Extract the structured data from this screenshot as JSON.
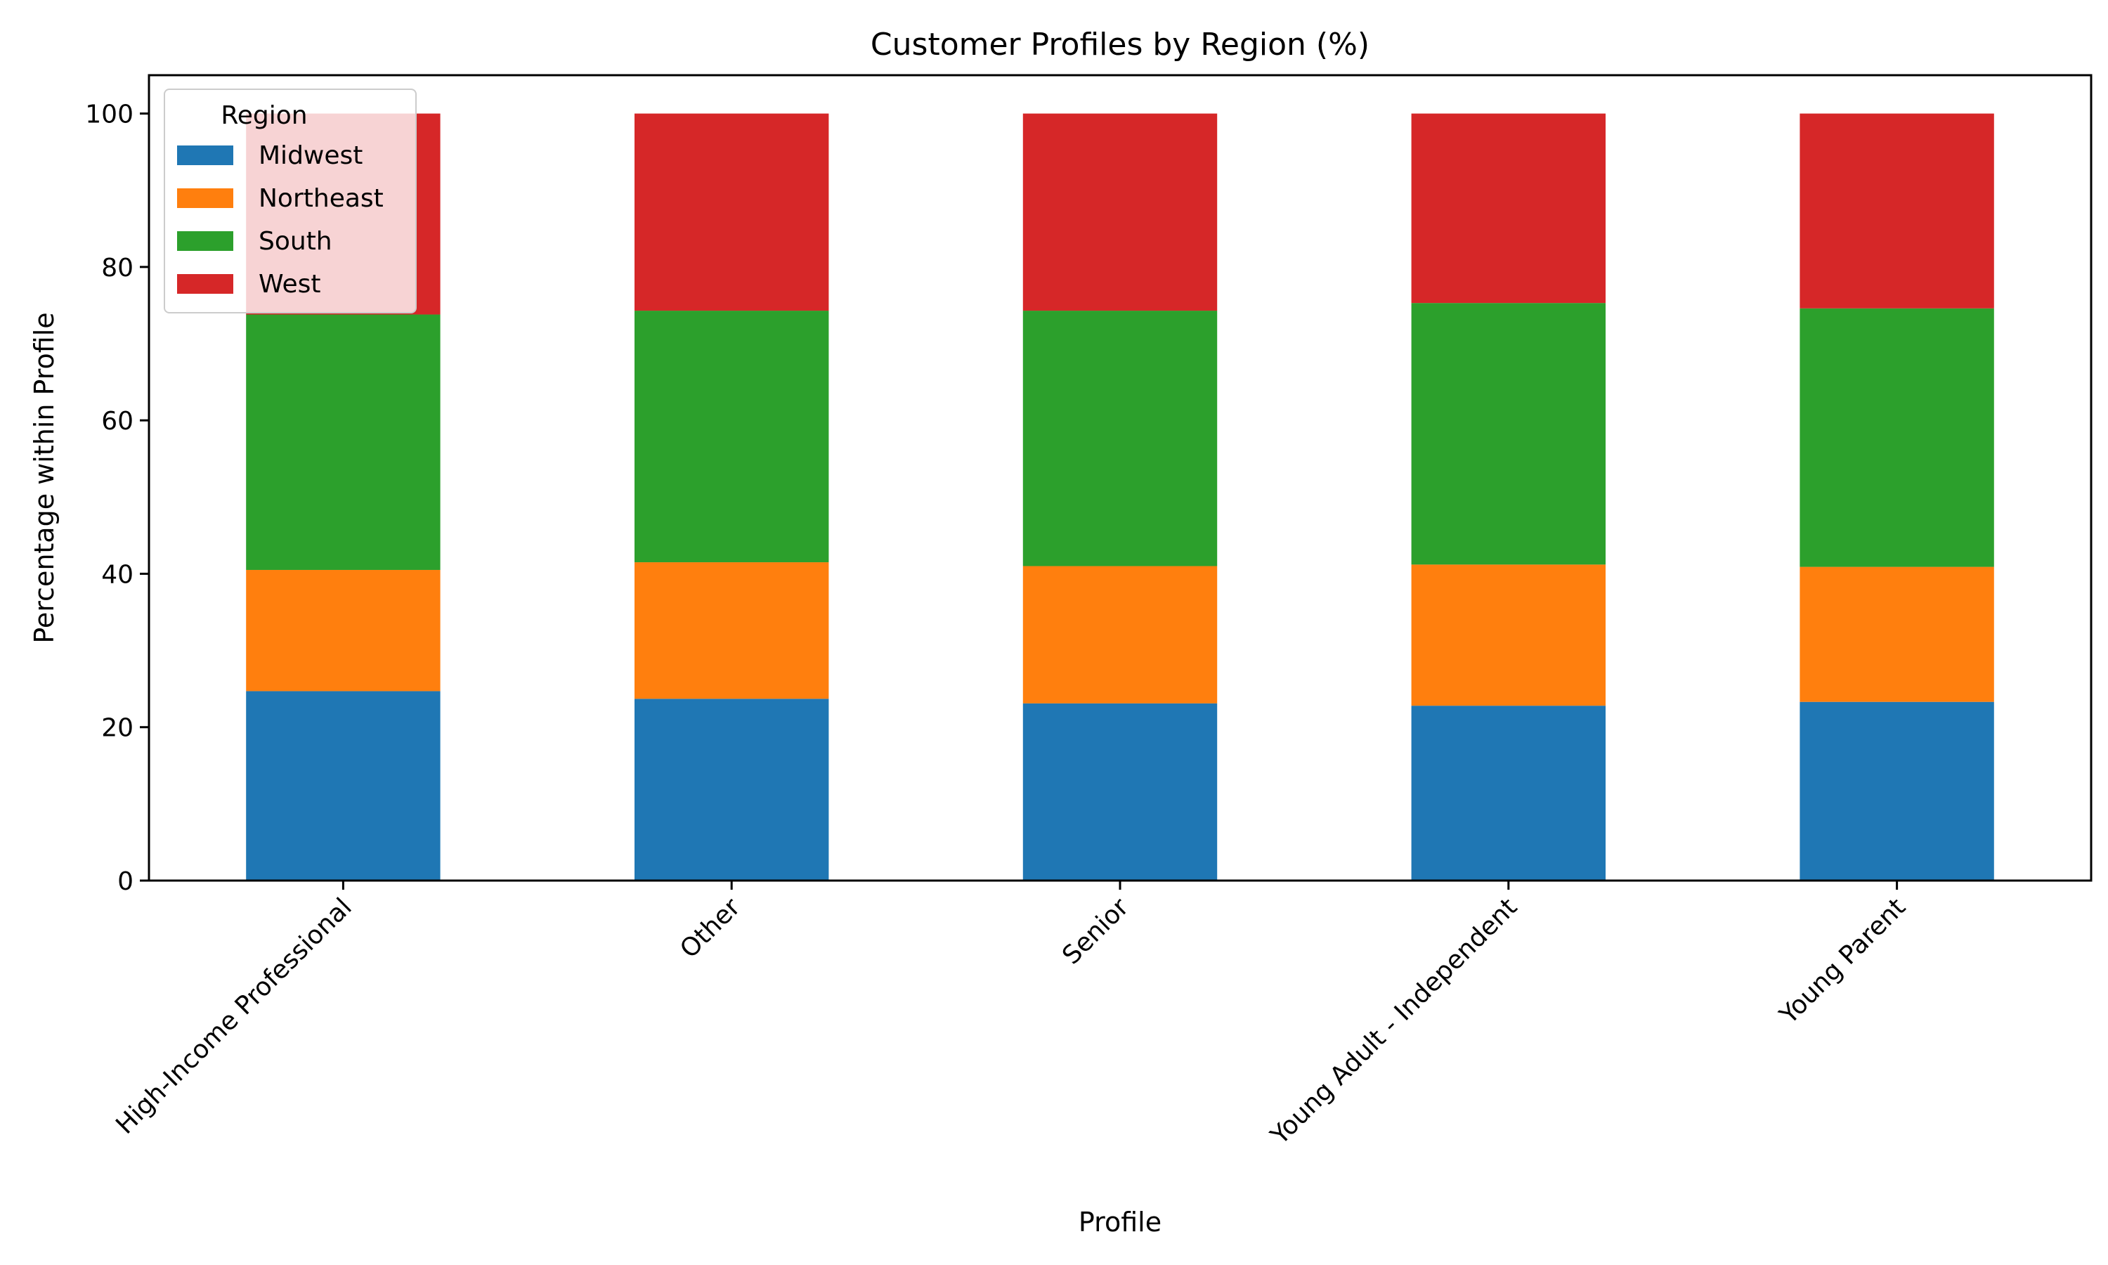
{
  "chart_data": {
    "type": "bar",
    "stacked": true,
    "title": "Customer Profiles by Region (%)",
    "xlabel": "Profile",
    "ylabel": "Percentage within Profile",
    "ylim": [
      0,
      105
    ],
    "yticks": [
      0,
      20,
      40,
      60,
      80,
      100
    ],
    "grid": false,
    "legend": {
      "title": "Region",
      "placement": "top-left"
    },
    "categories": [
      "High-Income Professional",
      "Other",
      "Senior",
      "Young Adult - Independent",
      "Young Parent"
    ],
    "series": [
      {
        "name": "Midwest",
        "color": "#1f77b4",
        "values": [
          24.7,
          23.7,
          23.1,
          22.8,
          23.3
        ]
      },
      {
        "name": "Northeast",
        "color": "#ff7f0e",
        "values": [
          15.8,
          17.8,
          17.9,
          18.4,
          17.6
        ]
      },
      {
        "name": "South",
        "color": "#2ca02c",
        "values": [
          33.3,
          32.8,
          33.3,
          34.1,
          33.7
        ]
      },
      {
        "name": "West",
        "color": "#d62728",
        "values": [
          26.2,
          25.7,
          25.7,
          24.7,
          25.4
        ]
      }
    ]
  }
}
